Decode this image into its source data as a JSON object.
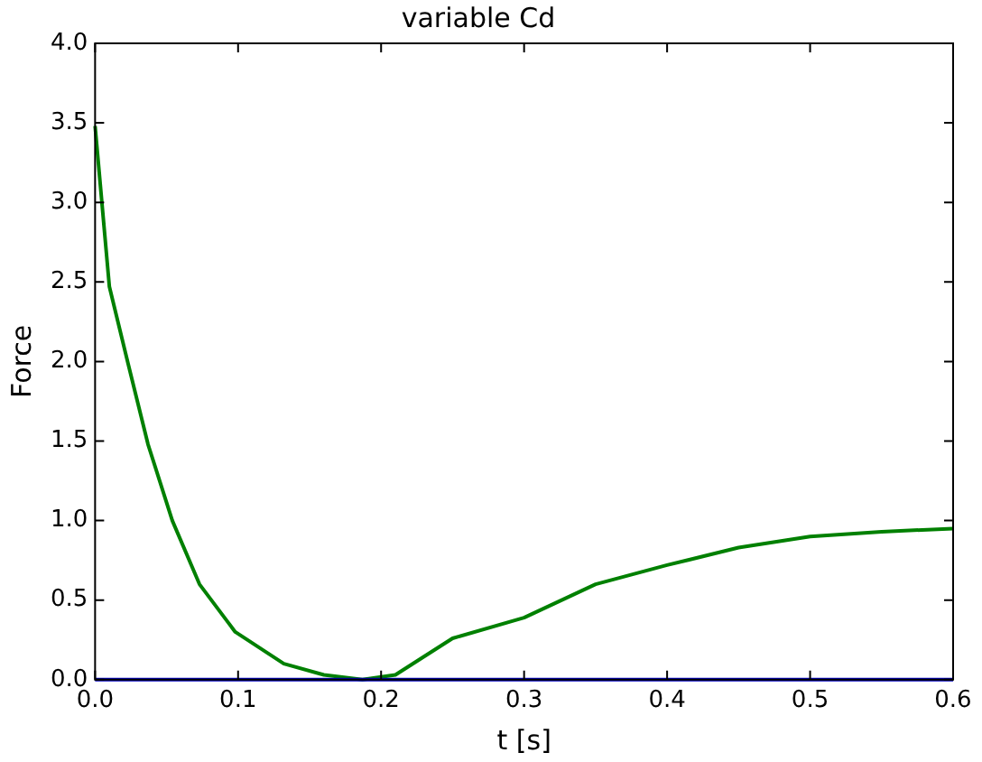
{
  "chart_data": {
    "type": "line",
    "title": "variable Cd",
    "xlabel": "t [s]",
    "ylabel": "Force",
    "xlim": [
      0,
      0.6
    ],
    "xticks": [
      {
        "value": 0,
        "label": "0.0"
      },
      0.1,
      0.2,
      0.3,
      0.4,
      0.5,
      0.6
    ],
    "ylim": [
      0,
      4
    ],
    "yticks": [
      {
        "value": 0,
        "label": "0.0"
      },
      0.5,
      {
        "value": 1,
        "label": "1.0"
      },
      1.5,
      {
        "value": 2,
        "label": "2.0"
      },
      2.5,
      {
        "value": 3,
        "label": "3.0"
      },
      3.5,
      {
        "value": 4,
        "label": "4.0"
      }
    ],
    "grid": false,
    "legend": false,
    "marker": "none",
    "line_style": "solid",
    "series": [
      {
        "color": "#0000bf",
        "x": [
          0,
          0.6
        ],
        "values": [
          0,
          0
        ]
      },
      {
        "color": "#008000",
        "x": [
          0,
          0.01,
          0.023,
          0.037,
          0.054,
          0.073,
          0.098,
          0.132,
          0.16,
          0.187,
          0.21,
          0.25,
          0.3,
          0.35,
          0.4,
          0.45,
          0.5,
          0.55,
          0.6
        ],
        "values": [
          3.48,
          2.47,
          1.99,
          1.48,
          1.0,
          0.6,
          0.3,
          0.1,
          0.03,
          0,
          0.03,
          0.26,
          0.39,
          0.6,
          0.72,
          0.83,
          0.9,
          0.93,
          0.95
        ]
      }
    ]
  }
}
